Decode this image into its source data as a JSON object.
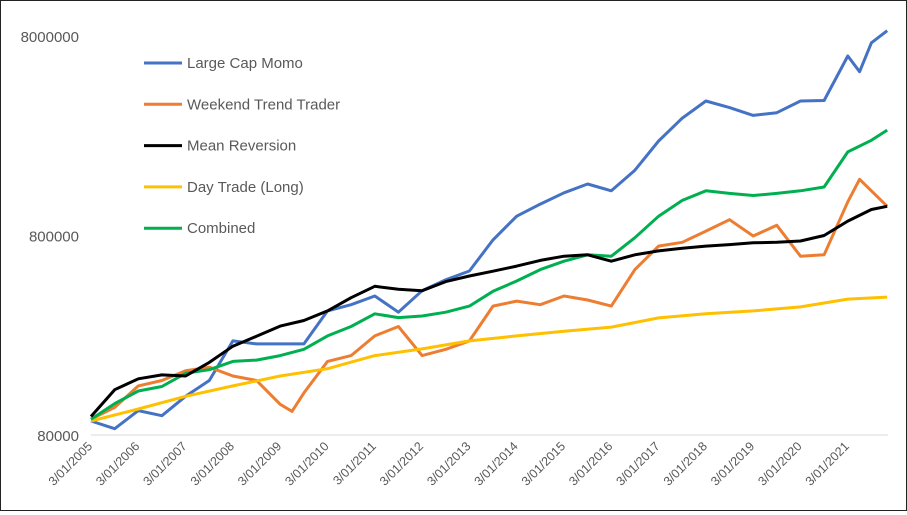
{
  "chart_data": {
    "type": "line",
    "title": "",
    "xlabel": "",
    "ylabel": "",
    "y_scale": "log",
    "ylim": [
      80000,
      8000000
    ],
    "y_ticks": [
      "80000",
      "800000",
      "8000000"
    ],
    "x_tick_labels": [
      "3/01/2005",
      "3/01/2006",
      "3/01/2007",
      "3/01/2008",
      "3/01/2009",
      "3/01/2010",
      "3/01/2011",
      "3/01/2012",
      "3/01/2013",
      "3/01/2014",
      "3/01/2015",
      "3/01/2016",
      "3/01/2017",
      "3/01/2018",
      "3/01/2019",
      "3/01/2020",
      "3/01/2021"
    ],
    "grid": false,
    "legend_position": "top-left",
    "series": [
      {
        "name": "Large Cap Momo",
        "color": "#4472C4",
        "points": [
          [
            "2005-03",
            94000
          ],
          [
            "2005-09",
            86000
          ],
          [
            "2006-03",
            106000
          ],
          [
            "2006-09",
            100000
          ],
          [
            "2007-03",
            125000
          ],
          [
            "2007-09",
            150000
          ],
          [
            "2008-03",
            237000
          ],
          [
            "2008-09",
            229000
          ],
          [
            "2009-03",
            229000
          ],
          [
            "2009-09",
            229000
          ],
          [
            "2010-03",
            335000
          ],
          [
            "2010-09",
            360000
          ],
          [
            "2011-03",
            398000
          ],
          [
            "2011-09",
            330000
          ],
          [
            "2012-03",
            423000
          ],
          [
            "2012-09",
            480000
          ],
          [
            "2013-03",
            531000
          ],
          [
            "2013-09",
            760000
          ],
          [
            "2014-03",
            1000000
          ],
          [
            "2014-09",
            1150000
          ],
          [
            "2015-03",
            1310000
          ],
          [
            "2015-09",
            1450000
          ],
          [
            "2016-03",
            1340000
          ],
          [
            "2016-09",
            1700000
          ],
          [
            "2017-03",
            2380000
          ],
          [
            "2017-09",
            3100000
          ],
          [
            "2018-03",
            3780000
          ],
          [
            "2018-09",
            3500000
          ],
          [
            "2019-03",
            3200000
          ],
          [
            "2019-09",
            3300000
          ],
          [
            "2020-03",
            3780000
          ],
          [
            "2020-09",
            3800000
          ],
          [
            "2021-03",
            6350000
          ],
          [
            "2021-06",
            5300000
          ],
          [
            "2021-09",
            7400000
          ],
          [
            "2022-01",
            8500000
          ]
        ]
      },
      {
        "name": "Weekend Trend Trader",
        "color": "#ED7D31",
        "points": [
          [
            "2005-03",
            96000
          ],
          [
            "2005-09",
            110000
          ],
          [
            "2006-03",
            141000
          ],
          [
            "2006-09",
            150000
          ],
          [
            "2007-03",
            168000
          ],
          [
            "2007-09",
            175000
          ],
          [
            "2008-03",
            158000
          ],
          [
            "2008-09",
            150000
          ],
          [
            "2009-03",
            114000
          ],
          [
            "2009-06",
            105000
          ],
          [
            "2009-09",
            130000
          ],
          [
            "2010-03",
            187000
          ],
          [
            "2010-09",
            200000
          ],
          [
            "2011-03",
            251000
          ],
          [
            "2011-09",
            280000
          ],
          [
            "2012-03",
            200000
          ],
          [
            "2012-09",
            215000
          ],
          [
            "2013-03",
            237000
          ],
          [
            "2013-09",
            354000
          ],
          [
            "2014-03",
            375000
          ],
          [
            "2014-09",
            360000
          ],
          [
            "2015-03",
            398000
          ],
          [
            "2015-09",
            380000
          ],
          [
            "2016-03",
            354000
          ],
          [
            "2016-09",
            540000
          ],
          [
            "2017-03",
            708000
          ],
          [
            "2017-09",
            740000
          ],
          [
            "2018-03",
            842000
          ],
          [
            "2018-09",
            960000
          ],
          [
            "2019-03",
            795000
          ],
          [
            "2019-09",
            900000
          ],
          [
            "2020-03",
            630000
          ],
          [
            "2020-09",
            640000
          ],
          [
            "2021-03",
            1180000
          ],
          [
            "2021-06",
            1530000
          ],
          [
            "2022-01",
            1120000
          ]
        ]
      },
      {
        "name": "Mean Reversion",
        "color": "#000000",
        "points": [
          [
            "2005-03",
            99000
          ],
          [
            "2005-09",
            135000
          ],
          [
            "2006-03",
            153000
          ],
          [
            "2006-09",
            160000
          ],
          [
            "2007-03",
            158000
          ],
          [
            "2007-09",
            185000
          ],
          [
            "2008-03",
            223000
          ],
          [
            "2008-09",
            250000
          ],
          [
            "2009-03",
            281000
          ],
          [
            "2009-09",
            300000
          ],
          [
            "2010-03",
            335000
          ],
          [
            "2010-09",
            390000
          ],
          [
            "2011-03",
            445000
          ],
          [
            "2011-09",
            430000
          ],
          [
            "2012-03",
            423000
          ],
          [
            "2012-09",
            470000
          ],
          [
            "2013-03",
            501000
          ],
          [
            "2013-09",
            530000
          ],
          [
            "2014-03",
            562000
          ],
          [
            "2014-09",
            600000
          ],
          [
            "2015-03",
            630000
          ],
          [
            "2015-09",
            640000
          ],
          [
            "2016-03",
            595000
          ],
          [
            "2016-09",
            640000
          ],
          [
            "2017-03",
            670000
          ],
          [
            "2017-09",
            690000
          ],
          [
            "2018-03",
            708000
          ],
          [
            "2018-09",
            720000
          ],
          [
            "2019-03",
            735000
          ],
          [
            "2019-09",
            740000
          ],
          [
            "2020-03",
            751000
          ],
          [
            "2020-09",
            800000
          ],
          [
            "2021-03",
            945000
          ],
          [
            "2021-09",
            1080000
          ],
          [
            "2022-01",
            1120000
          ]
        ]
      },
      {
        "name": "Day Trade (Long)",
        "color": "#FFC000",
        "points": [
          [
            "2005-03",
            94000
          ],
          [
            "2006-03",
            108000
          ],
          [
            "2007-03",
            125000
          ],
          [
            "2008-03",
            141000
          ],
          [
            "2009-03",
            158000
          ],
          [
            "2010-03",
            172000
          ],
          [
            "2011-03",
            200000
          ],
          [
            "2012-03",
            216000
          ],
          [
            "2013-03",
            237000
          ],
          [
            "2014-03",
            251000
          ],
          [
            "2015-03",
            265000
          ],
          [
            "2016-03",
            278000
          ],
          [
            "2017-03",
            309000
          ],
          [
            "2018-03",
            324000
          ],
          [
            "2019-03",
            335000
          ],
          [
            "2020-03",
            351000
          ],
          [
            "2021-03",
            384000
          ],
          [
            "2022-01",
            393000
          ]
        ]
      },
      {
        "name": "Combined",
        "color": "#00B050",
        "points": [
          [
            "2005-03",
            96000
          ],
          [
            "2005-09",
            115000
          ],
          [
            "2006-03",
            133000
          ],
          [
            "2006-09",
            140000
          ],
          [
            "2007-03",
            163000
          ],
          [
            "2007-09",
            170000
          ],
          [
            "2008-03",
            187000
          ],
          [
            "2008-09",
            190000
          ],
          [
            "2009-03",
            200000
          ],
          [
            "2009-09",
            215000
          ],
          [
            "2010-03",
            251000
          ],
          [
            "2010-09",
            280000
          ],
          [
            "2011-03",
            324000
          ],
          [
            "2011-09",
            310000
          ],
          [
            "2012-03",
            316000
          ],
          [
            "2012-09",
            330000
          ],
          [
            "2013-03",
            354000
          ],
          [
            "2013-09",
            420000
          ],
          [
            "2014-03",
            473000
          ],
          [
            "2014-09",
            540000
          ],
          [
            "2015-03",
            595000
          ],
          [
            "2015-09",
            640000
          ],
          [
            "2016-03",
            630000
          ],
          [
            "2016-09",
            780000
          ],
          [
            "2017-03",
            1000000
          ],
          [
            "2017-09",
            1200000
          ],
          [
            "2018-03",
            1340000
          ],
          [
            "2018-09",
            1300000
          ],
          [
            "2019-03",
            1270000
          ],
          [
            "2019-09",
            1300000
          ],
          [
            "2020-03",
            1340000
          ],
          [
            "2020-09",
            1400000
          ],
          [
            "2021-03",
            2100000
          ],
          [
            "2021-09",
            2400000
          ],
          [
            "2022-01",
            2700000
          ]
        ]
      }
    ]
  }
}
